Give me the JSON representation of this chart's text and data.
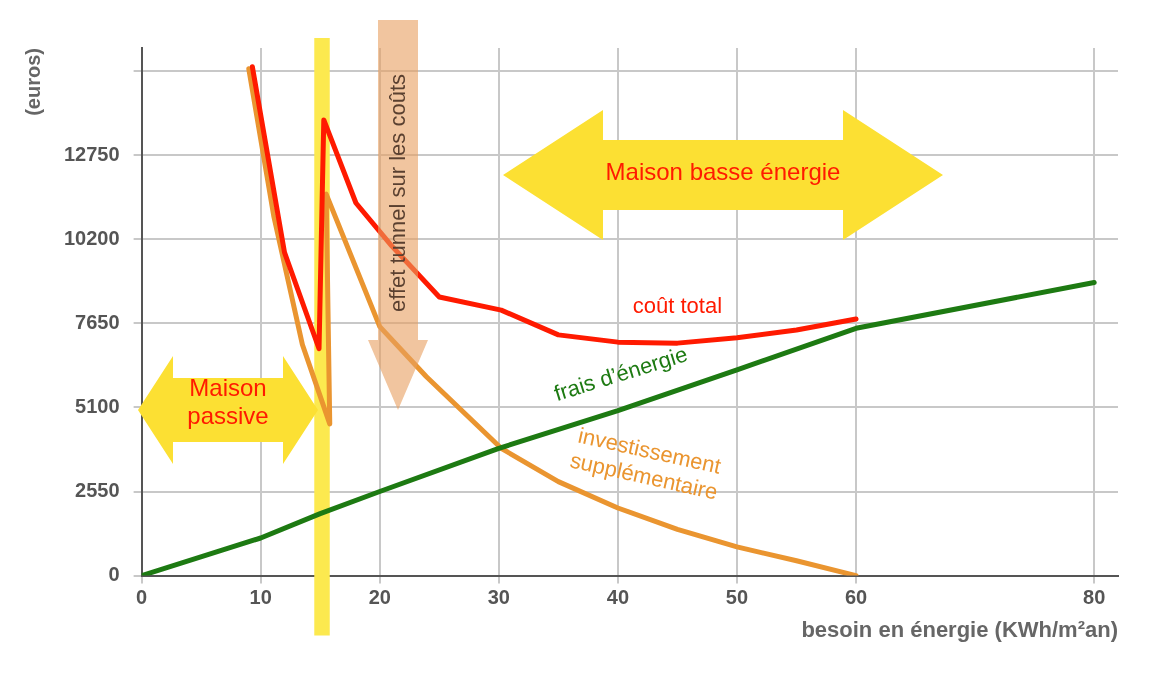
{
  "chart_data": {
    "type": "line",
    "xlabel": "besoin en énergie (KWh/m²an)",
    "ylabel": "(euros)",
    "xlim": [
      0,
      82
    ],
    "xticks": [
      0,
      10,
      20,
      30,
      40,
      50,
      60,
      80
    ],
    "ylim": [
      0,
      16000
    ],
    "yticks": [
      0,
      2550,
      5100,
      7650,
      10200,
      12750,
      {
        "value": 15300,
        "label": null
      }
    ],
    "grid": true,
    "legend": false,
    "marker": "none",
    "line_style": "solid",
    "series": [
      {
        "name": "coût total",
        "color": "#ff1a00",
        "x": [
          9.3,
          12,
          14.9,
          15.3,
          18,
          21,
          25,
          30.2,
          35,
          40,
          45,
          50,
          55,
          60
        ],
        "values": [
          15430,
          9800,
          6880,
          13820,
          11300,
          10000,
          8450,
          8050,
          7300,
          7080,
          7050,
          7210,
          7450,
          7780
        ]
      },
      {
        "name": "frais d’énergie",
        "color": "#1d7a12",
        "x": [
          0,
          10,
          15,
          20,
          30,
          40,
          50,
          60,
          80
        ],
        "values": [
          0,
          1140,
          1880,
          2550,
          3860,
          5000,
          6240,
          7500,
          8890
        ]
      },
      {
        "name": "investissement supplémentaire",
        "color": "#ea9530",
        "x": [
          9,
          11.1,
          13.5,
          15.8,
          15.5,
          20,
          23.9,
          30.2,
          35,
          40,
          45,
          50,
          55,
          60
        ],
        "values": [
          15370,
          10900,
          7010,
          4600,
          11570,
          7550,
          6040,
          3860,
          2850,
          2050,
          1400,
          870,
          450,
          0
        ]
      }
    ],
    "bands": [
      {
        "axis": "x",
        "from": 14.5,
        "to": 15.8,
        "color": "#fce94f"
      }
    ],
    "annotations": [
      "Maison passive",
      "Maison basse énergie",
      "effet tunnel sur les coûts"
    ]
  }
}
